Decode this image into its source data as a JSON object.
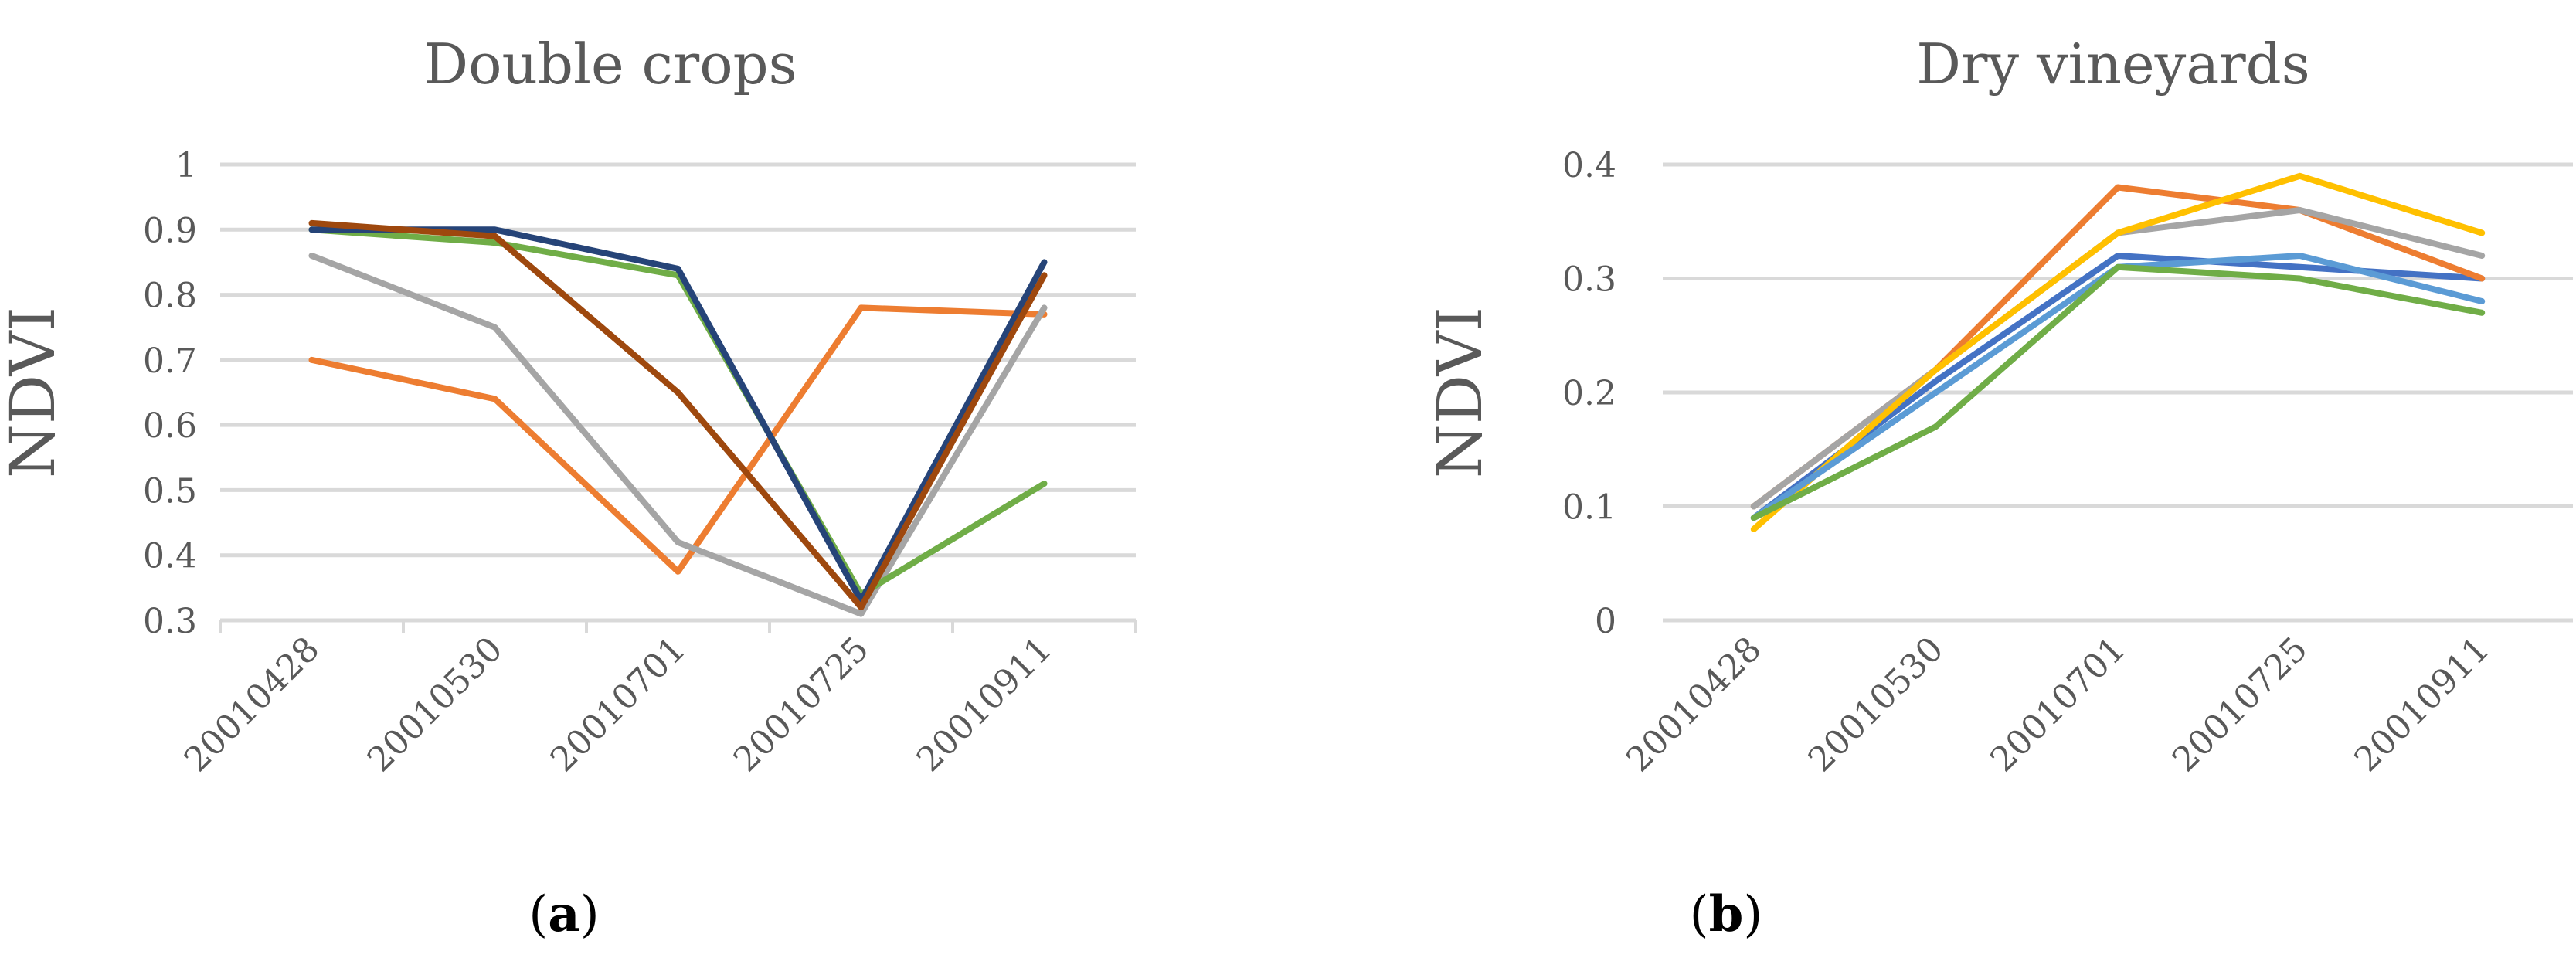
{
  "chart_data": [
    {
      "type": "line",
      "title": "Double crops",
      "xlabel": "",
      "ylabel": "NDVI",
      "ylim": [
        0.3,
        1.0
      ],
      "yticks": [
        "0.3",
        "0.4",
        "0.5",
        "0.6",
        "0.7",
        "0.8",
        "0.9",
        "1"
      ],
      "categories": [
        "20010428",
        "20010530",
        "20010701",
        "20010725",
        "20010911"
      ],
      "grid": true,
      "legend": "none",
      "panel_label": "a",
      "series": [
        {
          "color": "#ED7D31",
          "values": [
            0.7,
            0.64,
            0.375,
            0.78,
            0.77
          ]
        },
        {
          "color": "#A5A5A5",
          "values": [
            0.86,
            0.75,
            0.42,
            0.31,
            0.78
          ]
        },
        {
          "color": "#70AD47",
          "values": [
            0.9,
            0.88,
            0.83,
            0.34,
            0.51
          ]
        },
        {
          "color": "#264478",
          "values": [
            0.9,
            0.9,
            0.84,
            0.33,
            0.85
          ]
        },
        {
          "color": "#9E480E",
          "values": [
            0.91,
            0.89,
            0.65,
            0.32,
            0.83
          ]
        }
      ]
    },
    {
      "type": "line",
      "title": "Dry vineyards",
      "xlabel": "",
      "ylabel": "NDVI",
      "ylim": [
        0,
        0.4
      ],
      "yticks": [
        "0",
        "0.1",
        "0.2",
        "0.3",
        "0.4"
      ],
      "categories": [
        "20010428",
        "20010530",
        "20010701",
        "20010725",
        "20010911"
      ],
      "grid": true,
      "legend": "none",
      "panel_label": "b",
      "series": [
        {
          "color": "#4472C4",
          "values": [
            0.09,
            0.21,
            0.32,
            0.31,
            0.3
          ]
        },
        {
          "color": "#ED7D31",
          "values": [
            0.1,
            0.22,
            0.38,
            0.36,
            0.3
          ]
        },
        {
          "color": "#A5A5A5",
          "values": [
            0.1,
            0.22,
            0.34,
            0.36,
            0.32
          ]
        },
        {
          "color": "#FFC000",
          "values": [
            0.08,
            0.22,
            0.34,
            0.39,
            0.34
          ]
        },
        {
          "color": "#5B9BD5",
          "values": [
            0.09,
            0.2,
            0.31,
            0.32,
            0.28
          ]
        },
        {
          "color": "#70AD47",
          "values": [
            0.09,
            0.17,
            0.31,
            0.3,
            0.27
          ]
        }
      ]
    }
  ]
}
